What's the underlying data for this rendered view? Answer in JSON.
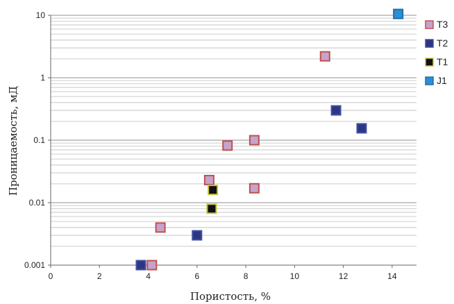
{
  "chart_data": {
    "type": "scatter",
    "xlabel": "Пористость, %",
    "ylabel": "Проницаемость, мД",
    "xlim": [
      0,
      15
    ],
    "ylim": [
      0.001,
      10
    ],
    "y_scale": "log",
    "x_ticks": [
      0,
      2,
      4,
      6,
      8,
      10,
      12,
      14
    ],
    "y_ticks": [
      {
        "value": 0.001,
        "label": "0.001"
      },
      {
        "value": 0.01,
        "label": "0.01"
      },
      {
        "value": 0.1,
        "label": "0.1"
      },
      {
        "value": 1,
        "label": "1"
      },
      {
        "value": 10,
        "label": "10"
      }
    ],
    "grid": "horizontal minor log gridlines",
    "legend_position": "right",
    "series": [
      {
        "name": "T3",
        "fill": "#c5a3cd",
        "stroke": "#c0504d",
        "points": [
          {
            "x": 4.15,
            "y": 0.001
          },
          {
            "x": 4.5,
            "y": 0.004
          },
          {
            "x": 6.5,
            "y": 0.023
          },
          {
            "x": 7.25,
            "y": 0.082
          },
          {
            "x": 8.35,
            "y": 0.1
          },
          {
            "x": 8.35,
            "y": 0.017
          },
          {
            "x": 11.25,
            "y": 2.2
          }
        ]
      },
      {
        "name": "T2",
        "fill": "#2e3682",
        "stroke": "#3f51a5",
        "points": [
          {
            "x": 3.7,
            "y": 0.001
          },
          {
            "x": 6.0,
            "y": 0.003
          },
          {
            "x": 11.7,
            "y": 0.3
          },
          {
            "x": 12.75,
            "y": 0.155
          }
        ]
      },
      {
        "name": "T1",
        "fill": "#111111",
        "stroke": "#c7c23a",
        "points": [
          {
            "x": 6.65,
            "y": 0.016
          },
          {
            "x": 6.6,
            "y": 0.008
          }
        ]
      },
      {
        "name": "J1",
        "fill": "#2a8fd6",
        "stroke": "#1f6ea8",
        "points": [
          {
            "x": 14.25,
            "y": 10.5
          }
        ]
      }
    ]
  }
}
